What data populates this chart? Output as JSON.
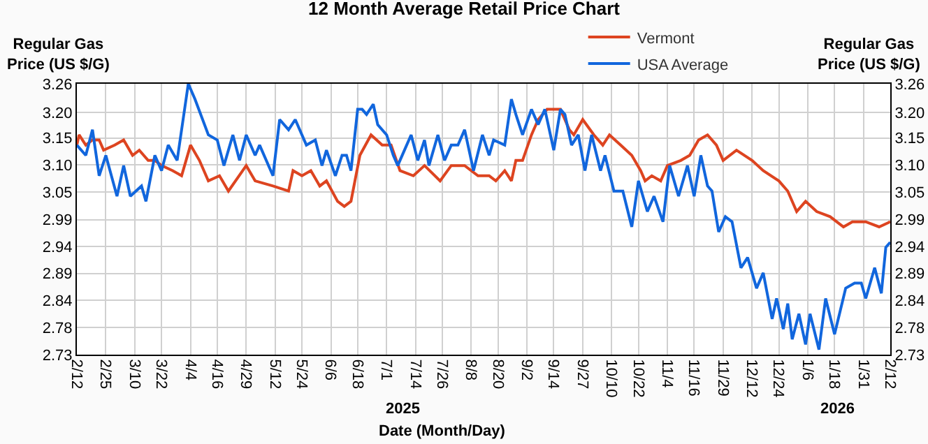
{
  "chart_data": {
    "type": "line",
    "title": "12 Month Average Retail Price Chart",
    "xlabel": "Date (Month/Day)",
    "ylabel": "Regular Gas Price (US $/G)",
    "y2label": "Regular Gas Price (US $/G)",
    "annotations": [
      "2025",
      "2026"
    ],
    "legend": "top right",
    "grid": true,
    "marker": "none",
    "line_style": "solid",
    "xlim": [
      "2025-02-12",
      "2026-02-12"
    ],
    "xticks": [
      {
        "value": "2025-02-12",
        "label": "2/12"
      },
      {
        "value": "2025-02-25",
        "label": "2/25"
      },
      {
        "value": "2025-03-10",
        "label": "3/10"
      },
      {
        "value": "2025-03-22",
        "label": "3/22"
      },
      {
        "value": "2025-04-04",
        "label": "4/4"
      },
      {
        "value": "2025-04-16",
        "label": "4/16"
      },
      {
        "value": "2025-04-29",
        "label": "4/29"
      },
      {
        "value": "2025-05-12",
        "label": "5/12"
      },
      {
        "value": "2025-05-24",
        "label": "5/24"
      },
      {
        "value": "2025-06-06",
        "label": "6/6"
      },
      {
        "value": "2025-06-18",
        "label": "6/18"
      },
      {
        "value": "2025-07-01",
        "label": "7/1"
      },
      {
        "value": "2025-07-14",
        "label": "7/14"
      },
      {
        "value": "2025-07-26",
        "label": "7/26"
      },
      {
        "value": "2025-08-08",
        "label": "8/8"
      },
      {
        "value": "2025-08-20",
        "label": "8/20"
      },
      {
        "value": "2025-09-02",
        "label": "9/2"
      },
      {
        "value": "2025-09-14",
        "label": "9/14"
      },
      {
        "value": "2025-09-27",
        "label": "9/27"
      },
      {
        "value": "2025-10-10",
        "label": "10/10"
      },
      {
        "value": "2025-10-22",
        "label": "10/22"
      },
      {
        "value": "2025-11-04",
        "label": "11/4"
      },
      {
        "value": "2025-11-16",
        "label": "11/16"
      },
      {
        "value": "2025-11-29",
        "label": "11/29"
      },
      {
        "value": "2025-12-12",
        "label": "12/12"
      },
      {
        "value": "2025-12-24",
        "label": "12/24"
      },
      {
        "value": "2026-01-06",
        "label": "1/6"
      },
      {
        "value": "2026-01-18",
        "label": "1/18"
      },
      {
        "value": "2026-01-31",
        "label": "1/31"
      },
      {
        "value": "2026-02-12",
        "label": "2/12"
      }
    ],
    "ylim": [
      2.73,
      3.26
    ],
    "yticks": [
      {
        "value": 2.73,
        "label": "2.73"
      },
      {
        "value": 2.783,
        "label": "2.78"
      },
      {
        "value": 2.836,
        "label": "2.84"
      },
      {
        "value": 2.889,
        "label": "2.89"
      },
      {
        "value": 2.942,
        "label": "2.94"
      },
      {
        "value": 2.994,
        "label": "2.99"
      },
      {
        "value": 3.048,
        "label": "3.05"
      },
      {
        "value": 3.101,
        "label": "3.10"
      },
      {
        "value": 3.154,
        "label": "3.15"
      },
      {
        "value": 3.204,
        "label": "3.20"
      },
      {
        "value": 3.26,
        "label": "3.26"
      }
    ],
    "y2lim": [
      2.73,
      3.26
    ],
    "y2ticks": [
      {
        "value": 2.73,
        "label": "2.73"
      },
      {
        "value": 2.783,
        "label": "2.78"
      },
      {
        "value": 2.836,
        "label": "2.84"
      },
      {
        "value": 2.889,
        "label": "2.89"
      },
      {
        "value": 2.942,
        "label": "2.94"
      },
      {
        "value": 2.994,
        "label": "2.99"
      },
      {
        "value": 3.048,
        "label": "3.05"
      },
      {
        "value": 3.101,
        "label": "3.10"
      },
      {
        "value": 3.154,
        "label": "3.15"
      },
      {
        "value": 3.204,
        "label": "3.20"
      },
      {
        "value": 3.26,
        "label": "3.26"
      }
    ],
    "series": [
      {
        "name": "Vermont",
        "color": "#dd4420",
        "x": [
          "2025-02-12",
          "2025-02-13",
          "2025-02-16",
          "2025-02-19",
          "2025-02-22",
          "2025-02-24",
          "2025-03-01",
          "2025-03-05",
          "2025-03-09",
          "2025-03-12",
          "2025-03-16",
          "2025-03-19",
          "2025-03-22",
          "2025-03-27",
          "2025-03-31",
          "2025-04-04",
          "2025-04-08",
          "2025-04-12",
          "2025-04-17",
          "2025-04-21",
          "2025-04-29",
          "2025-05-03",
          "2025-05-11",
          "2025-05-18",
          "2025-05-20",
          "2025-05-24",
          "2025-05-28",
          "2025-06-01",
          "2025-06-04",
          "2025-06-09",
          "2025-06-12",
          "2025-06-15",
          "2025-06-19",
          "2025-06-24",
          "2025-06-29",
          "2025-07-03",
          "2025-07-07",
          "2025-07-13",
          "2025-07-18",
          "2025-07-25",
          "2025-07-30",
          "2025-08-05",
          "2025-08-11",
          "2025-08-16",
          "2025-08-19",
          "2025-08-23",
          "2025-08-26",
          "2025-08-28",
          "2025-08-31",
          "2025-09-04",
          "2025-09-07",
          "2025-09-11",
          "2025-09-14",
          "2025-09-17",
          "2025-09-21",
          "2025-09-23",
          "2025-09-27",
          "2025-10-02",
          "2025-10-06",
          "2025-10-09",
          "2025-10-14",
          "2025-10-19",
          "2025-10-23",
          "2025-10-25",
          "2025-10-28",
          "2025-11-01",
          "2025-11-04",
          "2025-11-10",
          "2025-11-14",
          "2025-11-18",
          "2025-11-22",
          "2025-11-26",
          "2025-11-29",
          "2025-12-05",
          "2025-12-12",
          "2025-12-17",
          "2025-12-24",
          "2025-12-28",
          "2026-01-01",
          "2026-01-05",
          "2026-01-10",
          "2026-01-16",
          "2026-01-22",
          "2026-01-26",
          "2026-02-01",
          "2026-02-07",
          "2026-02-12"
        ],
        "values": [
          3.14,
          3.16,
          3.14,
          3.15,
          3.15,
          3.13,
          3.14,
          3.15,
          3.12,
          3.13,
          3.11,
          3.11,
          3.1,
          3.09,
          3.08,
          3.14,
          3.11,
          3.07,
          3.08,
          3.05,
          3.1,
          3.07,
          3.06,
          3.05,
          3.09,
          3.08,
          3.09,
          3.06,
          3.07,
          3.03,
          3.02,
          3.03,
          3.12,
          3.16,
          3.14,
          3.14,
          3.09,
          3.08,
          3.1,
          3.07,
          3.1,
          3.1,
          3.08,
          3.08,
          3.07,
          3.09,
          3.07,
          3.11,
          3.11,
          3.16,
          3.19,
          3.21,
          3.21,
          3.21,
          3.17,
          3.16,
          3.19,
          3.16,
          3.14,
          3.16,
          3.14,
          3.12,
          3.09,
          3.07,
          3.08,
          3.07,
          3.1,
          3.11,
          3.12,
          3.15,
          3.16,
          3.14,
          3.11,
          3.13,
          3.11,
          3.09,
          3.07,
          3.05,
          3.01,
          3.03,
          3.01,
          3.0,
          2.98,
          2.99,
          2.99,
          2.98,
          2.99
        ]
      },
      {
        "name": "USA Average",
        "color": "#1166dd",
        "x": [
          "2025-02-12",
          "2025-02-16",
          "2025-02-19",
          "2025-02-22",
          "2025-02-25",
          "2025-03-02",
          "2025-03-05",
          "2025-03-08",
          "2025-03-13",
          "2025-03-15",
          "2025-03-19",
          "2025-03-22",
          "2025-03-25",
          "2025-03-29",
          "2025-04-03",
          "2025-04-06",
          "2025-04-12",
          "2025-04-16",
          "2025-04-19",
          "2025-04-23",
          "2025-04-26",
          "2025-04-29",
          "2025-05-03",
          "2025-05-05",
          "2025-05-11",
          "2025-05-14",
          "2025-05-18",
          "2025-05-21",
          "2025-05-26",
          "2025-05-30",
          "2025-06-02",
          "2025-06-04",
          "2025-06-08",
          "2025-06-11",
          "2025-06-13",
          "2025-06-15",
          "2025-06-18",
          "2025-06-20",
          "2025-06-22",
          "2025-06-25",
          "2025-06-27",
          "2025-07-01",
          "2025-07-04",
          "2025-07-06",
          "2025-07-09",
          "2025-07-12",
          "2025-07-15",
          "2025-07-18",
          "2025-07-20",
          "2025-07-24",
          "2025-07-27",
          "2025-07-30",
          "2025-08-02",
          "2025-08-05",
          "2025-08-09",
          "2025-08-13",
          "2025-08-16",
          "2025-08-18",
          "2025-08-23",
          "2025-08-26",
          "2025-08-28",
          "2025-08-31",
          "2025-09-04",
          "2025-09-07",
          "2025-09-10",
          "2025-09-14",
          "2025-09-17",
          "2025-09-19",
          "2025-09-22",
          "2025-09-25",
          "2025-09-28",
          "2025-10-01",
          "2025-10-05",
          "2025-10-07",
          "2025-10-11",
          "2025-10-15",
          "2025-10-19",
          "2025-10-22",
          "2025-10-26",
          "2025-10-29",
          "2025-11-02",
          "2025-11-05",
          "2025-11-09",
          "2025-11-13",
          "2025-11-16",
          "2025-11-19",
          "2025-11-22",
          "2025-11-24",
          "2025-11-27",
          "2025-11-30",
          "2025-12-03",
          "2025-12-07",
          "2025-12-10",
          "2025-12-14",
          "2025-12-17",
          "2025-12-21",
          "2025-12-23",
          "2025-12-26",
          "2025-12-28",
          "2025-12-30",
          "2026-01-02",
          "2026-01-05",
          "2026-01-07",
          "2026-01-11",
          "2026-01-14",
          "2026-01-18",
          "2026-01-23",
          "2026-01-27",
          "2026-01-30",
          "2026-02-01",
          "2026-02-05",
          "2026-02-08",
          "2026-02-10",
          "2026-02-12"
        ],
        "values": [
          3.14,
          3.12,
          3.17,
          3.08,
          3.12,
          3.04,
          3.1,
          3.04,
          3.06,
          3.03,
          3.12,
          3.09,
          3.14,
          3.11,
          3.26,
          3.23,
          3.16,
          3.15,
          3.1,
          3.16,
          3.11,
          3.16,
          3.12,
          3.14,
          3.08,
          3.19,
          3.17,
          3.19,
          3.14,
          3.15,
          3.1,
          3.13,
          3.08,
          3.12,
          3.12,
          3.09,
          3.21,
          3.21,
          3.2,
          3.22,
          3.18,
          3.16,
          3.12,
          3.1,
          3.13,
          3.16,
          3.11,
          3.15,
          3.1,
          3.16,
          3.11,
          3.14,
          3.14,
          3.17,
          3.09,
          3.16,
          3.12,
          3.15,
          3.14,
          3.23,
          3.2,
          3.16,
          3.21,
          3.18,
          3.21,
          3.13,
          3.21,
          3.2,
          3.14,
          3.16,
          3.09,
          3.16,
          3.09,
          3.12,
          3.05,
          3.05,
          2.98,
          3.07,
          3.01,
          3.04,
          2.99,
          3.1,
          3.04,
          3.1,
          3.04,
          3.12,
          3.06,
          3.05,
          2.97,
          3.0,
          2.99,
          2.9,
          2.92,
          2.86,
          2.89,
          2.8,
          2.84,
          2.78,
          2.83,
          2.76,
          2.81,
          2.75,
          2.81,
          2.74,
          2.84,
          2.77,
          2.86,
          2.87,
          2.87,
          2.84,
          2.9,
          2.85,
          2.94,
          2.95
        ]
      }
    ]
  }
}
